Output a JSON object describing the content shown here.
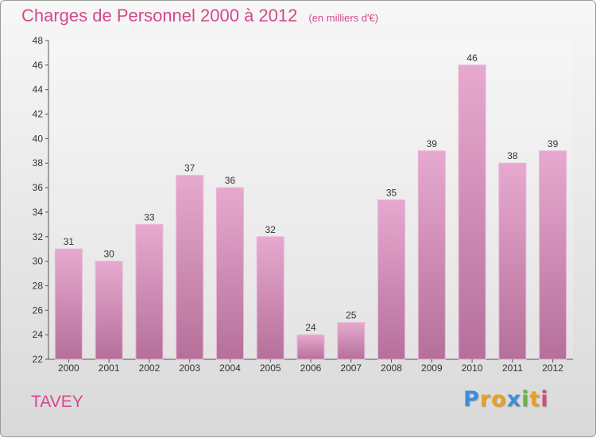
{
  "chart_data": {
    "type": "bar",
    "title": "Charges de Personnel 2000 à 2012",
    "subtitle": "(en milliers d'€)",
    "categories": [
      "2000",
      "2001",
      "2002",
      "2003",
      "2004",
      "2005",
      "2006",
      "2007",
      "2008",
      "2009",
      "2010",
      "2011",
      "2012"
    ],
    "values": [
      31,
      30,
      33,
      37,
      36,
      32,
      24,
      25,
      35,
      39,
      46,
      38,
      39
    ],
    "ylim": [
      22,
      48
    ],
    "yticks": [
      22,
      24,
      26,
      28,
      30,
      32,
      34,
      36,
      38,
      40,
      42,
      44,
      46,
      48
    ],
    "grid": false,
    "bar_color": "#d98fba"
  },
  "commune": "TAVEY",
  "logo": {
    "letters": [
      "P",
      "r",
      "o",
      "x",
      "i",
      "t",
      "i"
    ],
    "colors": [
      "#3a8fd9",
      "#e8a020",
      "#e8a020",
      "#3a8fd9",
      "#6ab04c",
      "#e8a020",
      "#d24a8a"
    ]
  }
}
